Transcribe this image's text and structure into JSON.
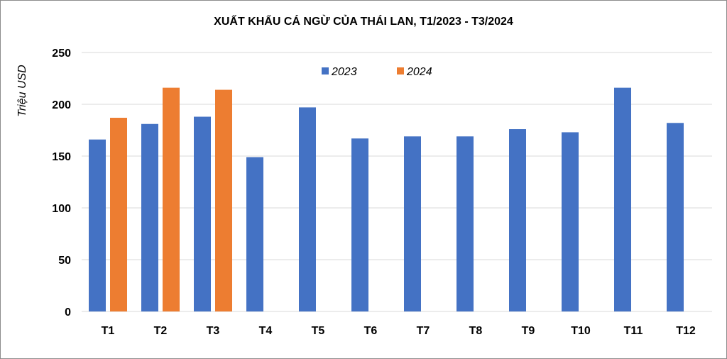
{
  "chart_data": {
    "type": "bar",
    "title": "XUẤT KHẨU CÁ NGỪ CỦA THÁI LAN, T1/2023 - T3/2024",
    "xlabel": "",
    "ylabel": "Triệu USD",
    "ylim": [
      0,
      250
    ],
    "yticks": [
      0,
      50,
      100,
      150,
      200,
      250
    ],
    "grid": true,
    "legend_position": "top-center",
    "categories": [
      "T1",
      "T2",
      "T3",
      "T4",
      "T5",
      "T6",
      "T7",
      "T8",
      "T9",
      "T10",
      "T11",
      "T12"
    ],
    "series": [
      {
        "name": "2023",
        "color": "#4472c4",
        "values": [
          166,
          181,
          188,
          149,
          197,
          167,
          169,
          169,
          176,
          173,
          216,
          182
        ]
      },
      {
        "name": "2024",
        "color": "#ed7d31",
        "values": [
          187,
          216,
          214,
          null,
          null,
          null,
          null,
          null,
          null,
          null,
          null,
          null
        ]
      }
    ]
  }
}
